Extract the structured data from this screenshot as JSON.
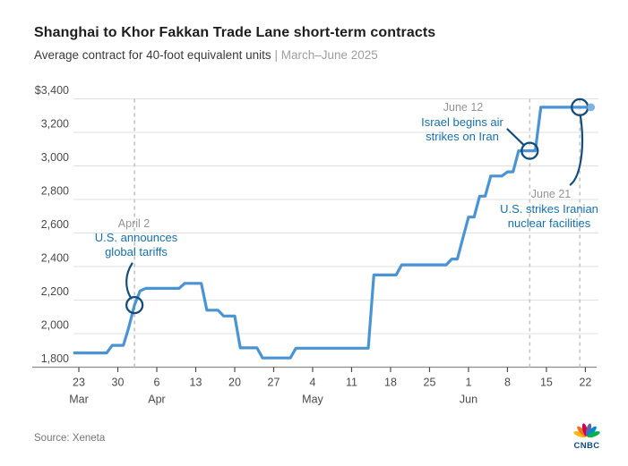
{
  "chart_data": {
    "type": "line",
    "title": "Shanghai to Khor Fakkan Trade Lane short-term contracts",
    "subtitle": "Average contract for 40-foot equivalent units",
    "subtitle_separator": "|",
    "subtitle_period": "March–June 2025",
    "currency_prefix": "$",
    "day_zero_date": "2025-03-22",
    "y_axis": {
      "min": 1800,
      "max": 3400,
      "tick_step": 200,
      "tick_values": [
        3400,
        3200,
        3000,
        2800,
        2600,
        2400,
        2200,
        2000,
        1800
      ],
      "tick_labels": [
        "$3,400",
        "3,200",
        "3,000",
        "2,800",
        "2,600",
        "2,400",
        "2,200",
        "2,000",
        "1,800"
      ]
    },
    "x_ticks": [
      {
        "day": 1,
        "label": "23",
        "month": "Mar"
      },
      {
        "day": 8,
        "label": "30"
      },
      {
        "day": 15,
        "label": "6",
        "month": "Apr"
      },
      {
        "day": 22,
        "label": "13"
      },
      {
        "day": 29,
        "label": "20"
      },
      {
        "day": 36,
        "label": "27"
      },
      {
        "day": 43,
        "label": "4",
        "month": "May"
      },
      {
        "day": 50,
        "label": "11"
      },
      {
        "day": 57,
        "label": "18"
      },
      {
        "day": 64,
        "label": "25"
      },
      {
        "day": 71,
        "label": "1",
        "month": "Jun"
      },
      {
        "day": 78,
        "label": "8"
      },
      {
        "day": 85,
        "label": "15"
      },
      {
        "day": 92,
        "label": "22"
      }
    ],
    "series": {
      "points": [
        [
          0,
          1885
        ],
        [
          6,
          1885
        ],
        [
          7,
          1930
        ],
        [
          9,
          1930
        ],
        [
          10,
          2040
        ],
        [
          11,
          2170
        ],
        [
          12,
          2255
        ],
        [
          13,
          2270
        ],
        [
          19,
          2270
        ],
        [
          20,
          2300
        ],
        [
          23,
          2300
        ],
        [
          24,
          2140
        ],
        [
          26,
          2140
        ],
        [
          27,
          2105
        ],
        [
          29,
          2105
        ],
        [
          30,
          1915
        ],
        [
          33,
          1915
        ],
        [
          34,
          1855
        ],
        [
          39,
          1855
        ],
        [
          40,
          1913
        ],
        [
          53,
          1913
        ],
        [
          54,
          2350
        ],
        [
          58,
          2350
        ],
        [
          59,
          2410
        ],
        [
          67,
          2410
        ],
        [
          68,
          2445
        ],
        [
          69,
          2445
        ],
        [
          70,
          2570
        ],
        [
          71,
          2695
        ],
        [
          72,
          2695
        ],
        [
          73,
          2820
        ],
        [
          74,
          2820
        ],
        [
          75,
          2940
        ],
        [
          77,
          2940
        ],
        [
          78,
          2965
        ],
        [
          79,
          2965
        ],
        [
          80,
          3090
        ],
        [
          83,
          3090
        ],
        [
          84,
          3350
        ],
        [
          93,
          3350
        ]
      ]
    },
    "last_point_marker": {
      "day": 93,
      "value": 3350
    },
    "annotations": [
      {
        "date_label": "April 2",
        "lines": [
          "U.S. announces",
          "global tariffs"
        ],
        "day": 11,
        "value": 2170
      },
      {
        "date_label": "June 12",
        "lines": [
          "Israel begins air",
          "strikes on Iran"
        ],
        "day": 82,
        "value": 3090
      },
      {
        "date_label": "June 21",
        "lines": [
          "U.S. strikes Iranian",
          "nuclear facilities"
        ],
        "day": 91,
        "value": 3350
      }
    ],
    "grid": true,
    "legend": "none"
  },
  "footer": {
    "source": "Source: Xeneta",
    "logo_text": "CNBC"
  },
  "colors": {
    "line": "#4a94d4",
    "end_dot": "#7fb2e0",
    "annotation_ring": "#134c7d",
    "annotation_text": "#1670ac",
    "date_label": "#949494",
    "grid": "#e1e1e1",
    "axis": "#8c8c8c",
    "tick_text": "#4a4a4a",
    "dashed_line": "#c4c4c4",
    "peacock": [
      "#FCB711",
      "#F37021",
      "#CC004C",
      "#6460AA",
      "#0089D0",
      "#0DB14B"
    ],
    "logo_navy": "#0e4a86"
  }
}
